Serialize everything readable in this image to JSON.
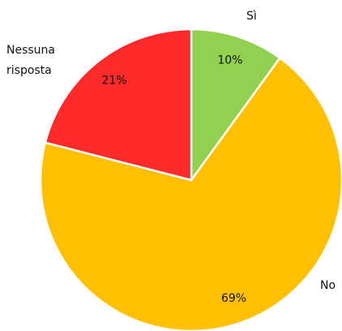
{
  "chart_data": {
    "type": "pie",
    "categories": [
      "Sì",
      "No",
      "Nessuna risposta"
    ],
    "values": [
      10,
      69,
      21
    ],
    "value_labels": [
      "10%",
      "69%",
      "21%"
    ],
    "colors": [
      "#92d050",
      "#ffc000",
      "#ff2a2a"
    ]
  }
}
